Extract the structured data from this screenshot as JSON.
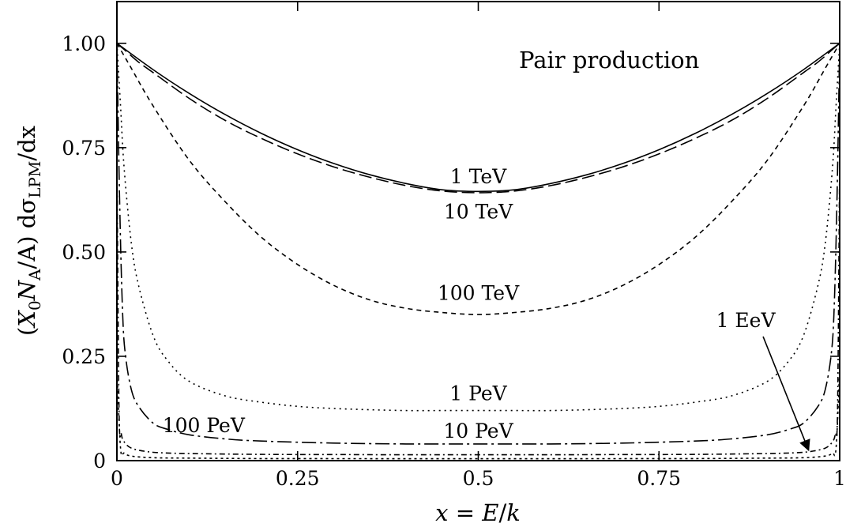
{
  "chart_data": {
    "type": "line",
    "title": "Pair production",
    "xlabel": {
      "var": "x",
      "eq": " = ",
      "num": "E",
      "slash": "/",
      "den": "k"
    },
    "ylabel": {
      "open": "(",
      "X": "X",
      "X_sub": "0",
      "N": "N",
      "N_sub": "A",
      "rest": "/A) dσ",
      "sigma_sub": "LPM",
      "tail": "/dx"
    },
    "xlim": [
      0,
      1
    ],
    "ylim": [
      0,
      1.1
    ],
    "x_ticks": [
      {
        "value": 0,
        "label": "0"
      },
      {
        "value": 0.25,
        "label": "0.25"
      },
      {
        "value": 0.5,
        "label": "0.5"
      },
      {
        "value": 0.75,
        "label": "0.75"
      },
      {
        "value": 1,
        "label": "1"
      }
    ],
    "y_ticks": [
      {
        "value": 0,
        "label": "0"
      },
      {
        "value": 0.25,
        "label": "0.25"
      },
      {
        "value": 0.5,
        "label": "0.50"
      },
      {
        "value": 0.75,
        "label": "0.75"
      },
      {
        "value": 1,
        "label": "1.00"
      }
    ],
    "grid": false,
    "legend": "none",
    "series": [
      {
        "name": "1 TeV",
        "dash": "",
        "x": [
          0,
          0.05,
          0.1,
          0.15,
          0.2,
          0.25,
          0.3,
          0.35,
          0.4,
          0.45,
          0.5,
          0.55,
          0.6,
          0.65,
          0.7,
          0.75,
          0.8,
          0.85,
          0.9,
          0.95,
          1
        ],
        "y": [
          1.0,
          0.937,
          0.88,
          0.829,
          0.784,
          0.745,
          0.712,
          0.685,
          0.664,
          0.649,
          0.645,
          0.649,
          0.664,
          0.685,
          0.712,
          0.745,
          0.784,
          0.829,
          0.88,
          0.937,
          1.0
        ]
      },
      {
        "name": "10 TeV",
        "dash": "16 6",
        "x": [
          0,
          0.01,
          0.03,
          0.05,
          0.1,
          0.15,
          0.2,
          0.25,
          0.3,
          0.35,
          0.4,
          0.45,
          0.5,
          0.55,
          0.6,
          0.65,
          0.7,
          0.75,
          0.8,
          0.85,
          0.9,
          0.95,
          0.97,
          0.99,
          1
        ],
        "y": [
          1.0,
          0.985,
          0.955,
          0.93,
          0.868,
          0.815,
          0.772,
          0.735,
          0.704,
          0.679,
          0.659,
          0.646,
          0.642,
          0.646,
          0.659,
          0.679,
          0.704,
          0.735,
          0.772,
          0.815,
          0.868,
          0.93,
          0.955,
          0.985,
          1.0
        ]
      },
      {
        "name": "100 TeV",
        "dash": "6 5",
        "x": [
          0,
          0.01,
          0.02,
          0.05,
          0.1,
          0.15,
          0.2,
          0.25,
          0.3,
          0.35,
          0.4,
          0.45,
          0.5,
          0.55,
          0.6,
          0.65,
          0.7,
          0.75,
          0.8,
          0.85,
          0.9,
          0.95,
          0.98,
          0.99,
          1
        ],
        "y": [
          1.0,
          0.97,
          0.94,
          0.85,
          0.72,
          0.62,
          0.535,
          0.47,
          0.42,
          0.385,
          0.365,
          0.355,
          0.35,
          0.355,
          0.365,
          0.385,
          0.42,
          0.47,
          0.535,
          0.62,
          0.72,
          0.85,
          0.94,
          0.97,
          1.0
        ]
      },
      {
        "name": "1 PeV",
        "dash": "2 5",
        "x": [
          0,
          0.005,
          0.01,
          0.02,
          0.03,
          0.05,
          0.07,
          0.1,
          0.15,
          0.2,
          0.25,
          0.3,
          0.35,
          0.4,
          0.45,
          0.5,
          0.55,
          0.6,
          0.65,
          0.7,
          0.75,
          0.8,
          0.85,
          0.9,
          0.93,
          0.95,
          0.97,
          0.98,
          0.99,
          0.995,
          1
        ],
        "y": [
          1.0,
          0.85,
          0.7,
          0.52,
          0.42,
          0.3,
          0.24,
          0.19,
          0.155,
          0.14,
          0.13,
          0.125,
          0.122,
          0.12,
          0.12,
          0.12,
          0.12,
          0.12,
          0.122,
          0.125,
          0.13,
          0.14,
          0.155,
          0.19,
          0.24,
          0.3,
          0.42,
          0.52,
          0.7,
          0.85,
          1.0
        ]
      },
      {
        "name": "10 PeV",
        "dash": "18 5 3 5",
        "x": [
          0,
          0.004,
          0.008,
          0.012,
          0.02,
          0.03,
          0.05,
          0.07,
          0.1,
          0.15,
          0.2,
          0.3,
          0.4,
          0.5,
          0.6,
          0.7,
          0.8,
          0.85,
          0.9,
          0.93,
          0.95,
          0.97,
          0.98,
          0.988,
          0.992,
          0.996,
          1
        ],
        "y": [
          1.0,
          0.6,
          0.35,
          0.25,
          0.17,
          0.13,
          0.09,
          0.075,
          0.062,
          0.052,
          0.047,
          0.042,
          0.04,
          0.04,
          0.04,
          0.042,
          0.047,
          0.052,
          0.062,
          0.075,
          0.09,
          0.13,
          0.17,
          0.25,
          0.35,
          0.6,
          1.0
        ]
      },
      {
        "name": "100 PeV",
        "dash": "7 4 2 4",
        "x": [
          0,
          0.003,
          0.006,
          0.01,
          0.02,
          0.04,
          0.06,
          0.1,
          0.2,
          0.3,
          0.4,
          0.5,
          0.6,
          0.7,
          0.8,
          0.9,
          0.94,
          0.96,
          0.98,
          0.99,
          0.994,
          0.997,
          1
        ],
        "y": [
          0.72,
          0.12,
          0.065,
          0.045,
          0.03,
          0.022,
          0.019,
          0.017,
          0.015,
          0.0145,
          0.014,
          0.014,
          0.014,
          0.0145,
          0.015,
          0.017,
          0.019,
          0.022,
          0.03,
          0.045,
          0.065,
          0.12,
          0.72
        ]
      },
      {
        "name": "1 EeV",
        "dash": "3 4",
        "x": [
          0,
          0.005,
          0.01,
          0.02,
          0.05,
          0.1,
          0.2,
          0.3,
          0.4,
          0.5,
          0.6,
          0.7,
          0.8,
          0.9,
          0.95,
          0.98,
          0.99,
          0.995,
          1
        ],
        "y": [
          0.22,
          0.03,
          0.018,
          0.011,
          0.007,
          0.006,
          0.005,
          0.0048,
          0.0046,
          0.0045,
          0.0046,
          0.0048,
          0.005,
          0.006,
          0.007,
          0.011,
          0.018,
          0.03,
          0.22
        ]
      }
    ],
    "annotations": [
      {
        "text": "1 TeV",
        "x": 0.5,
        "y": 0.665
      },
      {
        "text": "10 TeV",
        "x": 0.5,
        "y": 0.58
      },
      {
        "text": "100 TeV",
        "x": 0.5,
        "y": 0.385
      },
      {
        "text": "1 PeV",
        "x": 0.5,
        "y": 0.145
      },
      {
        "text": "10 PeV",
        "x": 0.5,
        "y": 0.055
      },
      {
        "text": "100 PeV",
        "x": 0.12,
        "y": 0.068
      },
      {
        "text": "1 EeV",
        "x": 0.87,
        "y": 0.32,
        "arrow_to": [
          0.957,
          0.025
        ]
      }
    ]
  }
}
